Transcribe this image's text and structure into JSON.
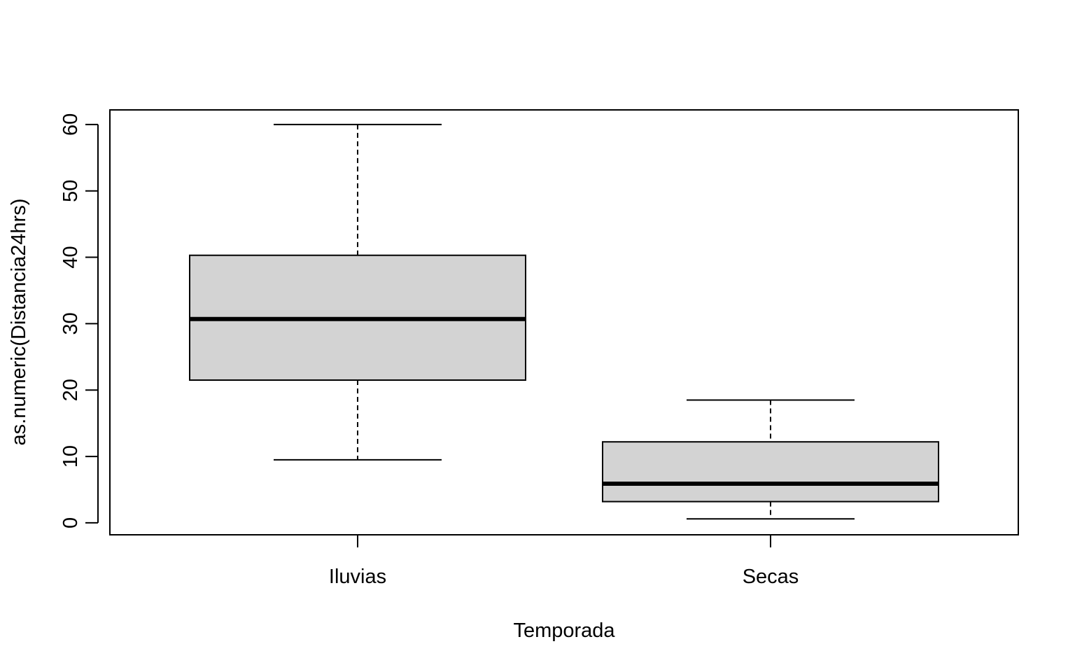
{
  "chart_data": {
    "type": "boxplot",
    "title": "",
    "xlabel": "Temporada",
    "ylabel": "as.numeric(Distancia24hrs)",
    "ylim": [
      -1.8,
      62.2
    ],
    "y_ticks": [
      0,
      10,
      20,
      30,
      40,
      50,
      60
    ],
    "grid": false,
    "box_fill": "#d3d3d3",
    "line_color": "#000000",
    "categories": [
      "Iluvias",
      "Secas"
    ],
    "series": [
      {
        "category": "Iluvias",
        "whisker_low": 9.5,
        "q1": 21.5,
        "median": 30.7,
        "q3": 40.3,
        "whisker_high": 60
      },
      {
        "category": "Secas",
        "whisker_low": 0.6,
        "q1": 3.2,
        "median": 5.9,
        "q3": 12.2,
        "whisker_high": 18.5
      }
    ]
  }
}
